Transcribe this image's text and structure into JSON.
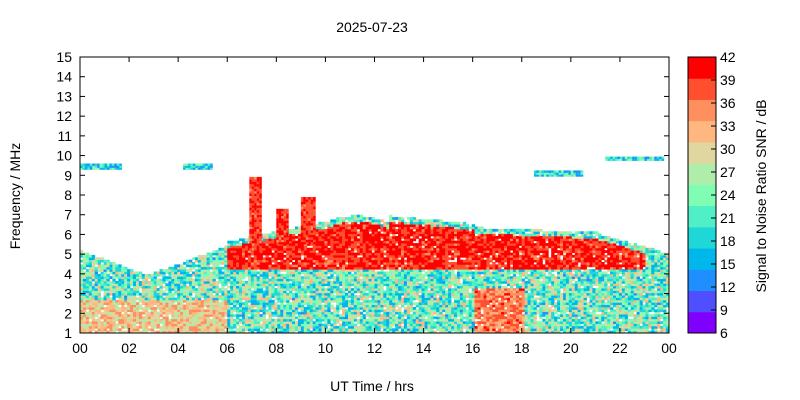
{
  "chart_data": {
    "type": "heatmap",
    "title": "2025-07-23",
    "xlabel": "UT Time / hrs",
    "ylabel": "Frequency / MHz",
    "xlim": [
      0,
      24
    ],
    "ylim": [
      1,
      15
    ],
    "x_ticks": [
      "00",
      "02",
      "04",
      "06",
      "08",
      "10",
      "12",
      "14",
      "16",
      "18",
      "20",
      "22",
      "00"
    ],
    "y_ticks": [
      "1",
      "2",
      "3",
      "4",
      "5",
      "6",
      "7",
      "8",
      "9",
      "10",
      "11",
      "12",
      "13",
      "14",
      "15"
    ],
    "colorbar": {
      "label": "Signal to Noise Ratio SNR / dB",
      "range": [
        6,
        42
      ],
      "ticks": [
        "6",
        "9",
        "12",
        "15",
        "18",
        "21",
        "24",
        "27",
        "30",
        "33",
        "36",
        "39",
        "42"
      ],
      "colors": [
        "#7f00ff",
        "#4f4fff",
        "#1f8fff",
        "#00b7eb",
        "#1fd7d7",
        "#4fefc7",
        "#7ffdb3",
        "#afedab",
        "#dfd79f",
        "#ffb780",
        "#ff8f5f",
        "#ff4f2f",
        "#ff0000"
      ]
    }
  }
}
